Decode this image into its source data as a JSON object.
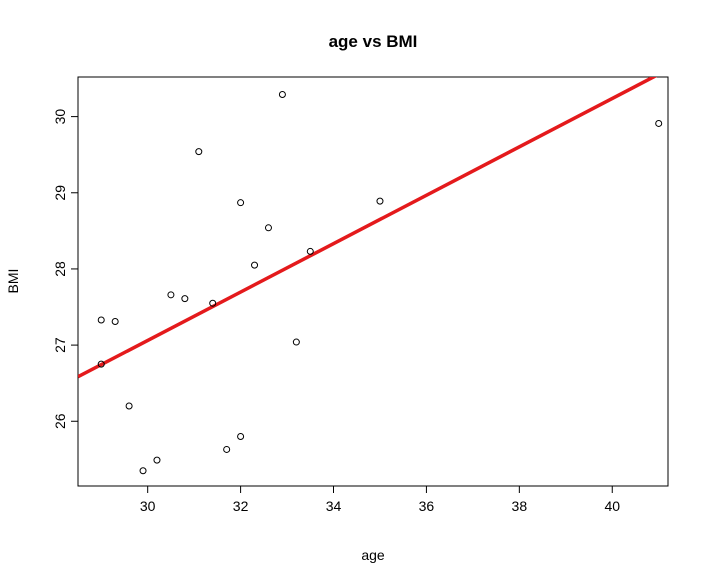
{
  "chart_data": {
    "type": "scatter",
    "title": "age vs BMI",
    "xlabel": "age",
    "ylabel": "BMI",
    "xlim": [
      28.5,
      41.2
    ],
    "ylim": [
      25.15,
      30.52
    ],
    "x_ticks": [
      30,
      32,
      34,
      36,
      38,
      40
    ],
    "y_ticks": [
      26,
      27,
      28,
      29,
      30
    ],
    "grid": false,
    "points": [
      {
        "x": 29.0,
        "y": 27.33
      },
      {
        "x": 29.0,
        "y": 26.75
      },
      {
        "x": 29.3,
        "y": 27.31
      },
      {
        "x": 29.6,
        "y": 26.2
      },
      {
        "x": 29.9,
        "y": 25.35
      },
      {
        "x": 30.2,
        "y": 25.49
      },
      {
        "x": 30.5,
        "y": 27.66
      },
      {
        "x": 30.8,
        "y": 27.61
      },
      {
        "x": 31.1,
        "y": 29.54
      },
      {
        "x": 31.4,
        "y": 27.55
      },
      {
        "x": 31.7,
        "y": 25.63
      },
      {
        "x": 32.0,
        "y": 28.87
      },
      {
        "x": 32.0,
        "y": 25.8
      },
      {
        "x": 32.3,
        "y": 28.05
      },
      {
        "x": 32.6,
        "y": 28.54
      },
      {
        "x": 32.9,
        "y": 30.29
      },
      {
        "x": 33.2,
        "y": 27.04
      },
      {
        "x": 33.5,
        "y": 28.23
      },
      {
        "x": 35.0,
        "y": 28.89
      },
      {
        "x": 41.0,
        "y": 29.91
      }
    ],
    "regression_line": {
      "intercept": 17.53,
      "slope": 0.3177,
      "color": "#e41a1c"
    },
    "point_color": "#000000"
  }
}
